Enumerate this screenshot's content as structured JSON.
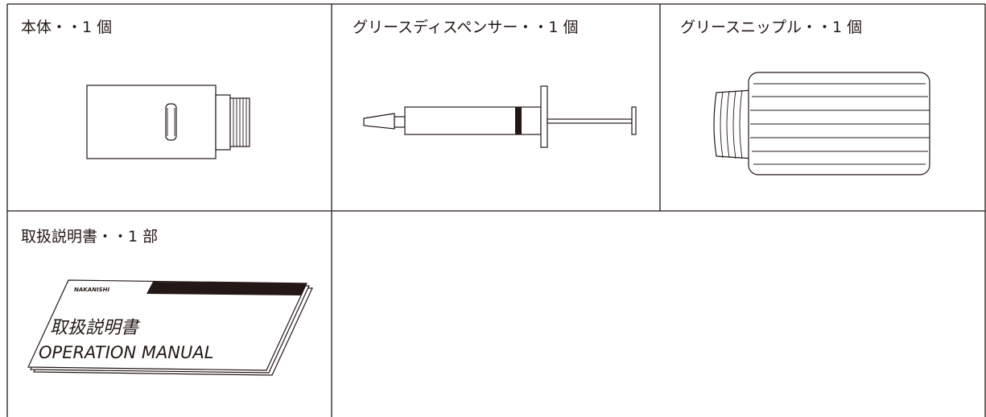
{
  "cells": [
    {
      "label": "本体・・1 個"
    },
    {
      "label": "グリースディスペンサー・・1 個"
    },
    {
      "label": "グリースニップル・・1 個"
    },
    {
      "label": "取扱説明書・・1 部"
    }
  ],
  "manual": {
    "brand": "NAKANISHI",
    "title": "取扱説明書",
    "subtitle": "OPERATION MANUAL"
  }
}
